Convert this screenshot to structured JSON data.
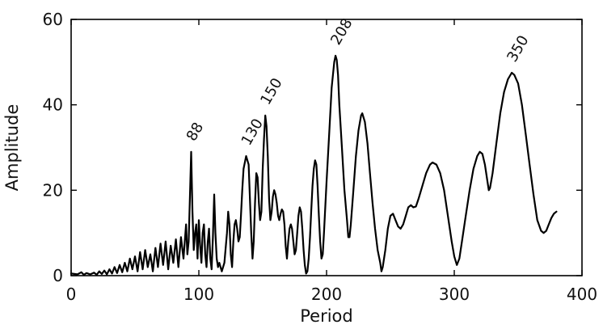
{
  "chart_data": {
    "type": "line",
    "title": "",
    "xlabel": "Period",
    "ylabel": "Amplitude",
    "xlim": [
      0,
      400
    ],
    "ylim": [
      0,
      60
    ],
    "grid": false,
    "x_ticks": [
      0,
      100,
      200,
      300,
      400
    ],
    "y_ticks": [
      0,
      20,
      40,
      60
    ],
    "x_tick_labels": [
      "0",
      "100",
      "200",
      "300",
      "400"
    ],
    "y_tick_labels": [
      "0",
      "20",
      "40",
      "60"
    ],
    "color": "#000000",
    "series": [
      {
        "points": [
          [
            0,
            0.5
          ],
          [
            5,
            0.3
          ],
          [
            8,
            0.8
          ],
          [
            10,
            0.2
          ],
          [
            12,
            0.6
          ],
          [
            15,
            0.3
          ],
          [
            18,
            0.7
          ],
          [
            20,
            0.2
          ],
          [
            22,
            1.0
          ],
          [
            24,
            0.4
          ],
          [
            26,
            1.2
          ],
          [
            28,
            0.3
          ],
          [
            30,
            1.5
          ],
          [
            32,
            0.5
          ],
          [
            34,
            2.0
          ],
          [
            36,
            0.6
          ],
          [
            38,
            2.5
          ],
          [
            40,
            0.8
          ],
          [
            42,
            3.0
          ],
          [
            44,
            1.0
          ],
          [
            46,
            4.0
          ],
          [
            48,
            1.5
          ],
          [
            50,
            4.5
          ],
          [
            52,
            1.0
          ],
          [
            54,
            5.5
          ],
          [
            56,
            1.5
          ],
          [
            58,
            6.0
          ],
          [
            60,
            2.0
          ],
          [
            62,
            5.0
          ],
          [
            64,
            1.0
          ],
          [
            66,
            6.5
          ],
          [
            68,
            2.0
          ],
          [
            70,
            7.5
          ],
          [
            72,
            2.5
          ],
          [
            74,
            8.0
          ],
          [
            76,
            1.5
          ],
          [
            78,
            7.0
          ],
          [
            80,
            3.0
          ],
          [
            82,
            8.5
          ],
          [
            84,
            2.0
          ],
          [
            86,
            9.0
          ],
          [
            88,
            4.0
          ],
          [
            90,
            12.0
          ],
          [
            91,
            5.0
          ],
          [
            92,
            8.0
          ],
          [
            93,
            18.0
          ],
          [
            94,
            29.0
          ],
          [
            95,
            15.0
          ],
          [
            96,
            6.0
          ],
          [
            97,
            10.0
          ],
          [
            98,
            12.0
          ],
          [
            99,
            4.0
          ],
          [
            100,
            13.0
          ],
          [
            101,
            7.0
          ],
          [
            102,
            3.0
          ],
          [
            103,
            10.0
          ],
          [
            104,
            12.0
          ],
          [
            105,
            5.0
          ],
          [
            106,
            2.0
          ],
          [
            107,
            8.0
          ],
          [
            108,
            11.0
          ],
          [
            109,
            4.0
          ],
          [
            110,
            1.5
          ],
          [
            111,
            9.0
          ],
          [
            112,
            19.0
          ],
          [
            113,
            10.0
          ],
          [
            114,
            4.0
          ],
          [
            115,
            2.0
          ],
          [
            116,
            3.0
          ],
          [
            118,
            1.0
          ],
          [
            120,
            3.0
          ],
          [
            122,
            10.0
          ],
          [
            123,
            15.0
          ],
          [
            124,
            12.0
          ],
          [
            125,
            5.0
          ],
          [
            126,
            2.0
          ],
          [
            127,
            8.0
          ],
          [
            128,
            12.0
          ],
          [
            129,
            13.0
          ],
          [
            130,
            11.0
          ],
          [
            131,
            8.0
          ],
          [
            132,
            9.0
          ],
          [
            133,
            14.0
          ],
          [
            134,
            20.0
          ],
          [
            135,
            25.0
          ],
          [
            137,
            28.0
          ],
          [
            139,
            26.0
          ],
          [
            140,
            18.0
          ],
          [
            141,
            10.0
          ],
          [
            142,
            4.0
          ],
          [
            143,
            8.0
          ],
          [
            144,
            17.0
          ],
          [
            145,
            24.0
          ],
          [
            146,
            23.0
          ],
          [
            147,
            17.0
          ],
          [
            148,
            13.0
          ],
          [
            149,
            15.0
          ],
          [
            150,
            25.0
          ],
          [
            151,
            32.0
          ],
          [
            152,
            37.5
          ],
          [
            153,
            35.0
          ],
          [
            154,
            28.0
          ],
          [
            155,
            18.0
          ],
          [
            156,
            13.0
          ],
          [
            157,
            15.0
          ],
          [
            158,
            18.5
          ],
          [
            159,
            20.0
          ],
          [
            160,
            19.0
          ],
          [
            161,
            17.0
          ],
          [
            162,
            14.0
          ],
          [
            163,
            13.0
          ],
          [
            164,
            14.5
          ],
          [
            165,
            15.5
          ],
          [
            166,
            15.0
          ],
          [
            167,
            12.0
          ],
          [
            168,
            7.0
          ],
          [
            169,
            4.0
          ],
          [
            170,
            8.0
          ],
          [
            171,
            11.0
          ],
          [
            172,
            12.0
          ],
          [
            173,
            11.0
          ],
          [
            174,
            8.0
          ],
          [
            175,
            5.0
          ],
          [
            176,
            6.0
          ],
          [
            177,
            10.0
          ],
          [
            178,
            14.0
          ],
          [
            179,
            16.0
          ],
          [
            180,
            15.0
          ],
          [
            181,
            11.0
          ],
          [
            182,
            6.0
          ],
          [
            183,
            2.5
          ],
          [
            184,
            0.5
          ],
          [
            185,
            1.0
          ],
          [
            186,
            4.0
          ],
          [
            187,
            9.0
          ],
          [
            188,
            15.0
          ],
          [
            189,
            21.0
          ],
          [
            190,
            25.0
          ],
          [
            191,
            27.0
          ],
          [
            192,
            26.0
          ],
          [
            193,
            21.0
          ],
          [
            194,
            14.0
          ],
          [
            195,
            8.0
          ],
          [
            196,
            4.0
          ],
          [
            197,
            5.0
          ],
          [
            198,
            10.0
          ],
          [
            200,
            22.0
          ],
          [
            202,
            33.0
          ],
          [
            204,
            44.0
          ],
          [
            206,
            50.0
          ],
          [
            207,
            51.5
          ],
          [
            208,
            50.5
          ],
          [
            209,
            47.0
          ],
          [
            210,
            40.0
          ],
          [
            212,
            30.0
          ],
          [
            214,
            20.0
          ],
          [
            216,
            13.0
          ],
          [
            217,
            9.0
          ],
          [
            218,
            9.0
          ],
          [
            219,
            12.0
          ],
          [
            221,
            20.0
          ],
          [
            223,
            28.0
          ],
          [
            225,
            34.0
          ],
          [
            227,
            37.5
          ],
          [
            228,
            38.0
          ],
          [
            230,
            36.0
          ],
          [
            232,
            31.0
          ],
          [
            234,
            24.0
          ],
          [
            236,
            17.0
          ],
          [
            238,
            11.0
          ],
          [
            240,
            6.0
          ],
          [
            242,
            3.0
          ],
          [
            243,
            1.0
          ],
          [
            244,
            2.0
          ],
          [
            246,
            6.0
          ],
          [
            248,
            11.0
          ],
          [
            250,
            14.0
          ],
          [
            252,
            14.5
          ],
          [
            254,
            13.0
          ],
          [
            256,
            11.5
          ],
          [
            258,
            11.0
          ],
          [
            260,
            12.0
          ],
          [
            262,
            14.0
          ],
          [
            264,
            16.0
          ],
          [
            266,
            16.5
          ],
          [
            268,
            16.0
          ],
          [
            270,
            16.2
          ],
          [
            272,
            18.0
          ],
          [
            275,
            21.0
          ],
          [
            278,
            24.0
          ],
          [
            281,
            26.0
          ],
          [
            283,
            26.5
          ],
          [
            286,
            26.0
          ],
          [
            289,
            24.0
          ],
          [
            292,
            20.0
          ],
          [
            295,
            14.0
          ],
          [
            298,
            8.0
          ],
          [
            300,
            4.5
          ],
          [
            302,
            2.5
          ],
          [
            304,
            4.0
          ],
          [
            306,
            8.0
          ],
          [
            309,
            14.0
          ],
          [
            312,
            20.0
          ],
          [
            315,
            25.0
          ],
          [
            318,
            28.0
          ],
          [
            320,
            29.0
          ],
          [
            322,
            28.5
          ],
          [
            324,
            26.0
          ],
          [
            326,
            22.0
          ],
          [
            327,
            20.0
          ],
          [
            328,
            20.5
          ],
          [
            330,
            24.0
          ],
          [
            333,
            31.0
          ],
          [
            336,
            38.0
          ],
          [
            339,
            43.0
          ],
          [
            342,
            46.0
          ],
          [
            345,
            47.5
          ],
          [
            347,
            47.0
          ],
          [
            350,
            45.0
          ],
          [
            353,
            40.0
          ],
          [
            356,
            33.0
          ],
          [
            359,
            26.0
          ],
          [
            362,
            19.0
          ],
          [
            365,
            13.0
          ],
          [
            368,
            10.5
          ],
          [
            370,
            10.0
          ],
          [
            372,
            10.5
          ],
          [
            374,
            12.0
          ],
          [
            376,
            13.5
          ],
          [
            378,
            14.5
          ],
          [
            380,
            15.0
          ]
        ]
      }
    ],
    "peak_labels": [
      {
        "text": "88",
        "x": 94,
        "y": 29
      },
      {
        "text": "130",
        "x": 137,
        "y": 28
      },
      {
        "text": "150",
        "x": 152,
        "y": 37.5
      },
      {
        "text": "208",
        "x": 207,
        "y": 51.5
      },
      {
        "text": "350",
        "x": 345,
        "y": 47.5
      }
    ]
  }
}
